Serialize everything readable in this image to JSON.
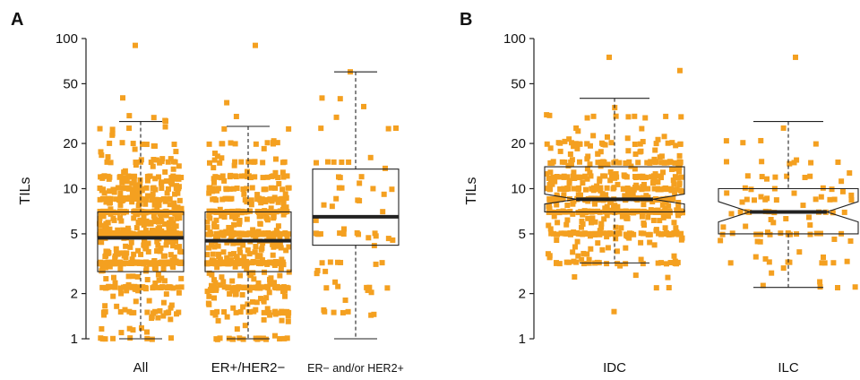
{
  "chart_data": [
    {
      "type": "box",
      "panel_label": "A",
      "ylabel": "TILs",
      "y_scale": "log",
      "ylim": [
        1,
        100
      ],
      "y_ticks": [
        1,
        2,
        5,
        10,
        20,
        50,
        100
      ],
      "notched": false,
      "point_color": "#f4a020",
      "categories": [
        "All",
        "ER+/HER2−",
        "ER− and/or HER2+"
      ],
      "boxes": [
        {
          "category": "All",
          "whisker_low": 1,
          "q1": 2.8,
          "median": 4.7,
          "q3": 7,
          "whisker_high": 28,
          "max_point": 90,
          "n_points_approx": 700
        },
        {
          "category": "ER+/HER2−",
          "whisker_low": 1,
          "q1": 2.8,
          "median": 4.5,
          "q3": 7,
          "whisker_high": 26,
          "max_point": 90,
          "n_points_approx": 600
        },
        {
          "category": "ER− and/or HER2+",
          "whisker_low": 1,
          "q1": 4.2,
          "median": 6.5,
          "q3": 13.5,
          "whisker_high": 60,
          "max_point": 60,
          "n_points_approx": 70
        }
      ]
    },
    {
      "type": "box",
      "panel_label": "B",
      "ylabel": "TILs",
      "y_scale": "log",
      "ylim": [
        1,
        100
      ],
      "y_ticks": [
        1,
        2,
        5,
        10,
        20,
        50,
        100
      ],
      "notched": true,
      "point_color": "#f4a020",
      "categories": [
        "IDC",
        "ILC"
      ],
      "boxes": [
        {
          "category": "IDC",
          "whisker_low": 3.2,
          "q1": 7,
          "median": 8.5,
          "q3": 14,
          "whisker_high": 40,
          "notch_low": 7.9,
          "notch_high": 9.2,
          "max_point": 75,
          "min_point": 1,
          "n_points_approx": 600
        },
        {
          "category": "ILC",
          "whisker_low": 2.2,
          "q1": 5,
          "median": 7,
          "q3": 10,
          "whisker_high": 28,
          "notch_low": 6.0,
          "notch_high": 8.2,
          "max_point": 75,
          "min_point": 2.2,
          "n_points_approx": 100
        }
      ]
    }
  ]
}
